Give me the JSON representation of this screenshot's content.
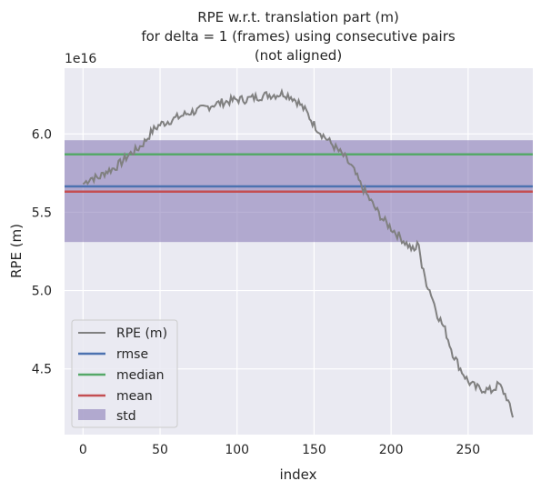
{
  "chart_data": {
    "type": "line",
    "title": [
      "RPE w.r.t. translation part (m)",
      "for delta = 1 (frames) using consecutive pairs",
      "(not aligned)"
    ],
    "xlabel": "index",
    "ylabel": "RPE (m)",
    "offset_label": "1e16",
    "xlim": [
      -12,
      292
    ],
    "ylim": [
      4.08,
      6.42
    ],
    "xticks": [
      0,
      50,
      100,
      150,
      200,
      250
    ],
    "xtick_labels": [
      "0",
      "50",
      "100",
      "150",
      "200",
      "250"
    ],
    "yticks": [
      4.5,
      5.0,
      5.5,
      6.0
    ],
    "ytick_labels": [
      "4.5",
      "5.0",
      "5.5",
      "6.0"
    ],
    "grid": true,
    "legend_position": "lower-left",
    "stats": {
      "rmse": 5.665,
      "median": 5.87,
      "mean": 5.632,
      "std_low": 5.31,
      "std_high": 5.96
    },
    "series": [
      {
        "name": "RPE (m)",
        "color": "#808080",
        "anchors": [
          [
            0,
            5.68
          ],
          [
            5,
            5.72
          ],
          [
            10,
            5.72
          ],
          [
            15,
            5.76
          ],
          [
            20,
            5.78
          ],
          [
            25,
            5.82
          ],
          [
            30,
            5.87
          ],
          [
            35,
            5.9
          ],
          [
            40,
            5.95
          ],
          [
            45,
            6.02
          ],
          [
            50,
            6.06
          ],
          [
            55,
            6.08
          ],
          [
            60,
            6.1
          ],
          [
            65,
            6.12
          ],
          [
            70,
            6.14
          ],
          [
            75,
            6.15
          ],
          [
            80,
            6.17
          ],
          [
            85,
            6.19
          ],
          [
            90,
            6.2
          ],
          [
            95,
            6.21
          ],
          [
            100,
            6.22
          ],
          [
            105,
            6.22
          ],
          [
            110,
            6.23
          ],
          [
            115,
            6.24
          ],
          [
            120,
            6.25
          ],
          [
            125,
            6.25
          ],
          [
            130,
            6.26
          ],
          [
            135,
            6.24
          ],
          [
            140,
            6.2
          ],
          [
            145,
            6.14
          ],
          [
            150,
            6.06
          ],
          [
            155,
            6.0
          ],
          [
            160,
            5.95
          ],
          [
            165,
            5.9
          ],
          [
            170,
            5.85
          ],
          [
            175,
            5.78
          ],
          [
            180,
            5.68
          ],
          [
            185,
            5.6
          ],
          [
            190,
            5.52
          ],
          [
            195,
            5.45
          ],
          [
            200,
            5.4
          ],
          [
            205,
            5.35
          ],
          [
            210,
            5.3
          ],
          [
            215,
            5.25
          ],
          [
            218,
            5.31
          ],
          [
            220,
            5.15
          ],
          [
            223,
            5.05
          ],
          [
            226,
            4.98
          ],
          [
            230,
            4.85
          ],
          [
            235,
            4.75
          ],
          [
            240,
            4.6
          ],
          [
            245,
            4.5
          ],
          [
            250,
            4.42
          ],
          [
            255,
            4.38
          ],
          [
            260,
            4.37
          ],
          [
            265,
            4.36
          ],
          [
            270,
            4.4
          ],
          [
            275,
            4.32
          ],
          [
            279,
            4.19
          ]
        ],
        "noise": 0.028
      },
      {
        "name": "rmse",
        "color": "#4c72b0"
      },
      {
        "name": "median",
        "color": "#55a868"
      },
      {
        "name": "mean",
        "color": "#c44e52"
      },
      {
        "name": "std",
        "color": "#8172b2"
      }
    ]
  }
}
